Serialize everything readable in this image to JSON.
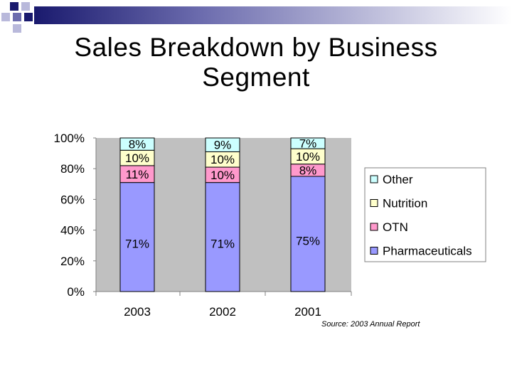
{
  "slide": {
    "title_line1": "Sales Breakdown by Business",
    "title_line2": "Segment",
    "source": "Source: 2003 Annual Report"
  },
  "chart_data": {
    "type": "bar",
    "stacked": true,
    "percent": true,
    "categories": [
      "2003",
      "2002",
      "2001"
    ],
    "series": [
      {
        "name": "Pharmaceuticals",
        "color": "#9999ff",
        "values": [
          71,
          71,
          75
        ],
        "labels": [
          "71%",
          "71%",
          "75%"
        ]
      },
      {
        "name": "OTN",
        "color": "#ff99cc",
        "values": [
          11,
          10,
          8
        ],
        "labels": [
          "11%",
          "10%",
          "8%"
        ]
      },
      {
        "name": "Nutrition",
        "color": "#ffffcc",
        "values": [
          10,
          10,
          10
        ],
        "labels": [
          "10%",
          "10%",
          "10%"
        ]
      },
      {
        "name": "Other",
        "color": "#ccffff",
        "values": [
          8,
          9,
          7
        ],
        "labels": [
          "8%",
          "9%",
          "7%"
        ]
      }
    ],
    "yticks": [
      "0%",
      "20%",
      "40%",
      "60%",
      "80%",
      "100%"
    ],
    "ylim": [
      0,
      100
    ],
    "legend_order": [
      "Other",
      "Nutrition",
      "OTN",
      "Pharmaceuticals"
    ],
    "legend_position": "right",
    "plot_background": "#c0c0c0",
    "grid": false
  }
}
